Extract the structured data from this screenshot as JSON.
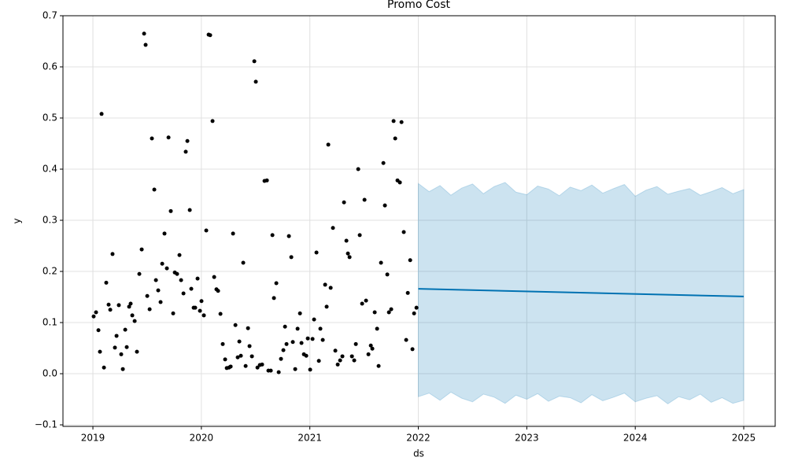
{
  "chart_data": {
    "type": "forecast",
    "title": "Promo Cost",
    "x_label": "ds",
    "y_label": "y",
    "xlim": [
      2018.724,
      2025.29
    ],
    "ylim": [
      -0.103,
      0.7
    ],
    "xticks": [
      2019,
      2020,
      2021,
      2022,
      2023,
      2024,
      2025
    ],
    "yticks": [
      {
        "value": -0.1,
        "label": "−0.1"
      },
      {
        "value": 0,
        "label": "0.0"
      },
      0.1,
      0.2,
      0.3,
      0.4,
      0.5,
      0.6,
      0.7
    ],
    "grid": true,
    "series": [
      {
        "type": "band",
        "color": "#0072b2",
        "x": [
          2022.0,
          2022.1,
          2022.2,
          2022.3,
          2022.4,
          2022.5,
          2022.6,
          2022.7,
          2022.8,
          2022.9,
          2023.0,
          2023.1,
          2023.2,
          2023.3,
          2023.4,
          2023.5,
          2023.6,
          2023.7,
          2023.8,
          2023.9,
          2024.0,
          2024.1,
          2024.2,
          2024.3,
          2024.4,
          2024.5,
          2024.6,
          2024.7,
          2024.8,
          2024.9,
          2025.0
        ],
        "upper": [
          0.372,
          0.356,
          0.368,
          0.349,
          0.363,
          0.371,
          0.352,
          0.366,
          0.374,
          0.355,
          0.35,
          0.367,
          0.361,
          0.348,
          0.365,
          0.358,
          0.369,
          0.353,
          0.362,
          0.37,
          0.347,
          0.359,
          0.366,
          0.351,
          0.357,
          0.362,
          0.349,
          0.356,
          0.364,
          0.352,
          0.36
        ],
        "lower": [
          -0.045,
          -0.038,
          -0.052,
          -0.036,
          -0.048,
          -0.055,
          -0.04,
          -0.046,
          -0.058,
          -0.042,
          -0.05,
          -0.039,
          -0.054,
          -0.044,
          -0.047,
          -0.057,
          -0.041,
          -0.053,
          -0.046,
          -0.038,
          -0.055,
          -0.048,
          -0.043,
          -0.059,
          -0.045,
          -0.051,
          -0.04,
          -0.056,
          -0.047,
          -0.058,
          -0.052
        ]
      },
      {
        "type": "line",
        "color": "#0072b2",
        "x": [
          2022.0,
          2025.0
        ],
        "values": [
          0.166,
          0.151
        ]
      },
      {
        "type": "scatter",
        "color": "#000000",
        "x": [
          2019.007,
          2019.029,
          2019.051,
          2019.065,
          2019.08,
          2019.102,
          2019.123,
          2019.145,
          2019.16,
          2019.181,
          2019.203,
          2019.218,
          2019.239,
          2019.261,
          2019.276,
          2019.298,
          2019.312,
          2019.334,
          2019.348,
          2019.363,
          2019.385,
          2019.406,
          2019.428,
          2019.45,
          2019.472,
          2019.486,
          2019.501,
          2019.523,
          2019.544,
          2019.566,
          2019.581,
          2019.602,
          2019.624,
          2019.639,
          2019.66,
          2019.682,
          2019.697,
          2019.718,
          2019.74,
          2019.755,
          2019.776,
          2019.798,
          2019.813,
          2019.835,
          2019.856,
          2019.871,
          2019.893,
          2019.907,
          2019.929,
          2019.943,
          2019.965,
          2019.987,
          2020.001,
          2020.023,
          2020.045,
          2020.067,
          2020.081,
          2020.103,
          2020.118,
          2020.139,
          2020.154,
          2020.176,
          2020.197,
          2020.219,
          2020.234,
          2020.255,
          2020.27,
          2020.292,
          2020.314,
          2020.335,
          2020.35,
          2020.364,
          2020.386,
          2020.408,
          2020.43,
          2020.444,
          2020.466,
          2020.488,
          2020.502,
          2020.517,
          2020.539,
          2020.56,
          2020.582,
          2020.604,
          2020.618,
          2020.64,
          2020.655,
          2020.669,
          2020.691,
          2020.713,
          2020.734,
          2020.756,
          2020.771,
          2020.785,
          2020.807,
          2020.829,
          2020.843,
          2020.865,
          2020.887,
          2020.909,
          2020.923,
          2020.945,
          2020.967,
          2020.981,
          2021.003,
          2021.025,
          2021.039,
          2021.061,
          2021.083,
          2021.097,
          2021.119,
          2021.141,
          2021.155,
          2021.17,
          2021.192,
          2021.213,
          2021.235,
          2021.257,
          2021.279,
          2021.3,
          2021.315,
          2021.337,
          2021.351,
          2021.366,
          2021.388,
          2021.409,
          2021.424,
          2021.446,
          2021.46,
          2021.482,
          2021.504,
          2021.518,
          2021.54,
          2021.562,
          2021.576,
          2021.598,
          2021.62,
          2021.634,
          2021.656,
          2021.678,
          2021.692,
          2021.714,
          2021.729,
          2021.75,
          2021.772,
          2021.787,
          2021.808,
          2021.83,
          2021.845,
          2021.866,
          2021.888,
          2021.903,
          2021.925,
          2021.946,
          2021.961,
          2021.983
        ],
        "values": [
          0.112,
          0.12,
          0.085,
          0.043,
          0.508,
          0.012,
          0.178,
          0.135,
          0.125,
          0.234,
          0.051,
          0.074,
          0.134,
          0.038,
          0.009,
          0.086,
          0.052,
          0.131,
          0.137,
          0.114,
          0.103,
          0.043,
          0.195,
          0.243,
          0.665,
          0.643,
          0.152,
          0.126,
          0.46,
          0.36,
          0.183,
          0.163,
          0.14,
          0.215,
          0.274,
          0.206,
          0.462,
          0.318,
          0.118,
          0.198,
          0.195,
          0.232,
          0.183,
          0.157,
          0.434,
          0.455,
          0.32,
          0.166,
          0.129,
          0.129,
          0.186,
          0.123,
          0.142,
          0.114,
          0.28,
          0.663,
          0.662,
          0.494,
          0.189,
          0.165,
          0.162,
          0.117,
          0.058,
          0.028,
          0.011,
          0.012,
          0.014,
          0.274,
          0.095,
          0.032,
          0.063,
          0.035,
          0.217,
          0.015,
          0.089,
          0.054,
          0.034,
          0.611,
          0.571,
          0.012,
          0.017,
          0.018,
          0.377,
          0.378,
          0.006,
          0.006,
          0.271,
          0.148,
          0.177,
          0.003,
          0.029,
          0.046,
          0.092,
          0.058,
          0.269,
          0.228,
          0.062,
          0.009,
          0.088,
          0.118,
          0.06,
          0.038,
          0.035,
          0.069,
          0.008,
          0.068,
          0.106,
          0.237,
          0.025,
          0.088,
          0.066,
          0.174,
          0.131,
          0.448,
          0.168,
          0.285,
          0.045,
          0.018,
          0.026,
          0.034,
          0.335,
          0.26,
          0.235,
          0.228,
          0.034,
          0.026,
          0.058,
          0.4,
          0.271,
          0.137,
          0.34,
          0.143,
          0.038,
          0.055,
          0.049,
          0.12,
          0.088,
          0.015,
          0.217,
          0.412,
          0.329,
          0.194,
          0.12,
          0.126,
          0.494,
          0.46,
          0.378,
          0.374,
          0.492,
          0.277,
          0.066,
          0.158,
          0.222,
          0.048,
          0.118,
          0.129
        ]
      }
    ]
  }
}
